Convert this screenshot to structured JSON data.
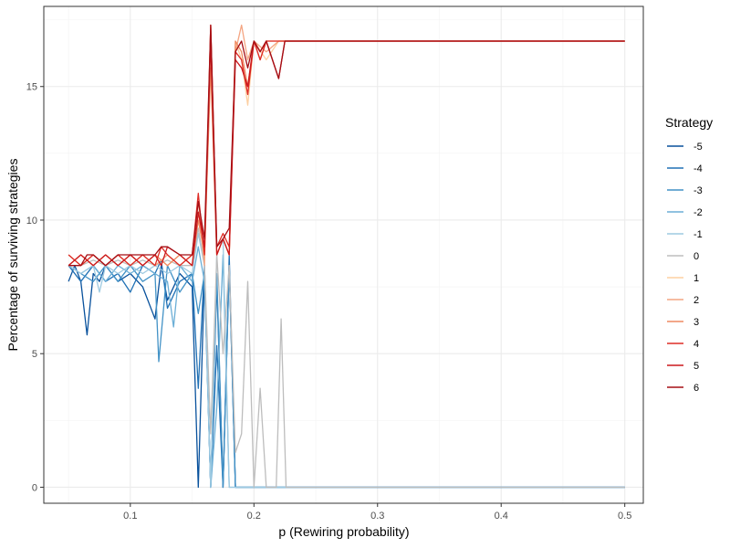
{
  "chart_data": {
    "type": "line",
    "title": "",
    "xlabel": "p (Rewiring probability)",
    "ylabel": "Percentage of surviving strategies",
    "xlim": [
      0.03,
      0.515
    ],
    "ylim": [
      -0.6,
      18.0
    ],
    "x_ticks": [
      0.1,
      0.2,
      0.3,
      0.4,
      0.5
    ],
    "x_tick_labels": [
      "0.1",
      "0.2",
      "0.3",
      "0.4",
      "0.5"
    ],
    "y_ticks": [
      0,
      5,
      10,
      15
    ],
    "y_tick_labels": [
      "0",
      "5",
      "10",
      "15"
    ],
    "grid": true,
    "legend": {
      "title": "Strategy",
      "position": "right"
    },
    "series": [
      {
        "name": "-5",
        "color": "#08519c",
        "points": [
          [
            0.05,
            7.7
          ],
          [
            0.055,
            8.3
          ],
          [
            0.06,
            7.7
          ],
          [
            0.065,
            5.7
          ],
          [
            0.07,
            8.0
          ],
          [
            0.075,
            7.7
          ],
          [
            0.08,
            8.3
          ],
          [
            0.09,
            7.7
          ],
          [
            0.1,
            8.0
          ],
          [
            0.11,
            7.5
          ],
          [
            0.12,
            6.3
          ],
          [
            0.125,
            8.3
          ],
          [
            0.13,
            7.0
          ],
          [
            0.14,
            8.0
          ],
          [
            0.15,
            7.5
          ],
          [
            0.155,
            0.0
          ],
          [
            0.16,
            8.0
          ],
          [
            0.165,
            0.0
          ],
          [
            0.17,
            7.7
          ],
          [
            0.175,
            0.0
          ],
          [
            0.18,
            8.3
          ],
          [
            0.185,
            0.0
          ],
          [
            0.5,
            0.0
          ]
        ]
      },
      {
        "name": "-4",
        "color": "#2171b5",
        "points": [
          [
            0.05,
            8.3
          ],
          [
            0.06,
            7.7
          ],
          [
            0.07,
            8.3
          ],
          [
            0.08,
            7.7
          ],
          [
            0.09,
            8.0
          ],
          [
            0.1,
            7.3
          ],
          [
            0.11,
            8.3
          ],
          [
            0.12,
            8.0
          ],
          [
            0.125,
            8.5
          ],
          [
            0.13,
            6.7
          ],
          [
            0.14,
            7.7
          ],
          [
            0.15,
            8.0
          ],
          [
            0.155,
            3.7
          ],
          [
            0.16,
            8.3
          ],
          [
            0.165,
            0.0
          ],
          [
            0.17,
            5.3
          ],
          [
            0.175,
            0.0
          ],
          [
            0.18,
            8.7
          ],
          [
            0.185,
            0.0
          ],
          [
            0.5,
            0.0
          ]
        ]
      },
      {
        "name": "-3",
        "color": "#4292c6",
        "points": [
          [
            0.05,
            8.3
          ],
          [
            0.06,
            8.0
          ],
          [
            0.07,
            7.7
          ],
          [
            0.08,
            8.3
          ],
          [
            0.09,
            7.7
          ],
          [
            0.1,
            8.3
          ],
          [
            0.11,
            7.7
          ],
          [
            0.12,
            8.0
          ],
          [
            0.123,
            4.7
          ],
          [
            0.13,
            8.3
          ],
          [
            0.14,
            7.3
          ],
          [
            0.15,
            8.0
          ],
          [
            0.155,
            6.5
          ],
          [
            0.16,
            8.0
          ],
          [
            0.165,
            0.0
          ],
          [
            0.17,
            8.0
          ],
          [
            0.175,
            0.0
          ],
          [
            0.18,
            8.3
          ],
          [
            0.185,
            0.0
          ],
          [
            0.5,
            0.0
          ]
        ]
      },
      {
        "name": "-2",
        "color": "#6baed6",
        "points": [
          [
            0.05,
            8.3
          ],
          [
            0.06,
            8.0
          ],
          [
            0.07,
            8.3
          ],
          [
            0.08,
            7.7
          ],
          [
            0.09,
            8.3
          ],
          [
            0.1,
            8.0
          ],
          [
            0.11,
            8.3
          ],
          [
            0.12,
            8.0
          ],
          [
            0.13,
            7.7
          ],
          [
            0.135,
            6.0
          ],
          [
            0.14,
            8.3
          ],
          [
            0.15,
            7.7
          ],
          [
            0.155,
            9.0
          ],
          [
            0.16,
            7.7
          ],
          [
            0.165,
            0.0
          ],
          [
            0.17,
            3.0
          ],
          [
            0.175,
            8.7
          ],
          [
            0.18,
            0.0
          ],
          [
            0.185,
            0.0
          ],
          [
            0.5,
            0.0
          ]
        ]
      },
      {
        "name": "-1",
        "color": "#9ecae1",
        "points": [
          [
            0.05,
            8.3
          ],
          [
            0.06,
            8.0
          ],
          [
            0.07,
            8.3
          ],
          [
            0.075,
            7.3
          ],
          [
            0.08,
            8.3
          ],
          [
            0.09,
            8.0
          ],
          [
            0.1,
            8.3
          ],
          [
            0.11,
            8.0
          ],
          [
            0.12,
            8.3
          ],
          [
            0.13,
            8.0
          ],
          [
            0.14,
            8.3
          ],
          [
            0.15,
            8.0
          ],
          [
            0.155,
            9.5
          ],
          [
            0.16,
            8.3
          ],
          [
            0.165,
            0.0
          ],
          [
            0.17,
            8.7
          ],
          [
            0.175,
            9.3
          ],
          [
            0.18,
            0.0
          ],
          [
            0.185,
            0.0
          ],
          [
            0.5,
            0.0
          ]
        ]
      },
      {
        "name": "0",
        "color": "#bdbdbd",
        "points": [
          [
            0.05,
            8.3
          ],
          [
            0.06,
            8.3
          ],
          [
            0.07,
            8.5
          ],
          [
            0.08,
            8.3
          ],
          [
            0.09,
            8.5
          ],
          [
            0.1,
            8.3
          ],
          [
            0.11,
            8.5
          ],
          [
            0.12,
            8.3
          ],
          [
            0.13,
            8.5
          ],
          [
            0.14,
            8.3
          ],
          [
            0.15,
            8.3
          ],
          [
            0.155,
            9.7
          ],
          [
            0.16,
            8.3
          ],
          [
            0.165,
            2.0
          ],
          [
            0.17,
            8.7
          ],
          [
            0.175,
            5.0
          ],
          [
            0.18,
            8.3
          ],
          [
            0.185,
            1.3
          ],
          [
            0.19,
            2.0
          ],
          [
            0.195,
            7.7
          ],
          [
            0.2,
            0.0
          ],
          [
            0.205,
            3.7
          ],
          [
            0.21,
            0.0
          ],
          [
            0.218,
            0.0
          ],
          [
            0.222,
            6.3
          ],
          [
            0.226,
            0.0
          ],
          [
            0.5,
            0.0
          ]
        ]
      },
      {
        "name": "1",
        "color": "#fdd0a2",
        "points": [
          [
            0.05,
            8.3
          ],
          [
            0.06,
            8.7
          ],
          [
            0.07,
            8.3
          ],
          [
            0.08,
            8.7
          ],
          [
            0.09,
            8.3
          ],
          [
            0.1,
            8.7
          ],
          [
            0.11,
            8.3
          ],
          [
            0.12,
            8.7
          ],
          [
            0.13,
            8.3
          ],
          [
            0.14,
            8.7
          ],
          [
            0.15,
            8.3
          ],
          [
            0.155,
            10.3
          ],
          [
            0.16,
            8.7
          ],
          [
            0.165,
            16.0
          ],
          [
            0.17,
            8.7
          ],
          [
            0.175,
            9.3
          ],
          [
            0.18,
            8.7
          ],
          [
            0.185,
            16.7
          ],
          [
            0.19,
            16.0
          ],
          [
            0.195,
            14.3
          ],
          [
            0.2,
            16.7
          ],
          [
            0.21,
            16.0
          ],
          [
            0.22,
            16.7
          ],
          [
            0.5,
            16.7
          ]
        ]
      },
      {
        "name": "2",
        "color": "#f4a582",
        "points": [
          [
            0.05,
            8.7
          ],
          [
            0.06,
            8.3
          ],
          [
            0.07,
            8.7
          ],
          [
            0.08,
            8.3
          ],
          [
            0.09,
            8.7
          ],
          [
            0.1,
            8.3
          ],
          [
            0.11,
            8.7
          ],
          [
            0.12,
            8.3
          ],
          [
            0.13,
            8.7
          ],
          [
            0.14,
            8.3
          ],
          [
            0.15,
            8.7
          ],
          [
            0.155,
            10.7
          ],
          [
            0.16,
            8.3
          ],
          [
            0.165,
            17.3
          ],
          [
            0.17,
            8.7
          ],
          [
            0.175,
            9.3
          ],
          [
            0.18,
            8.7
          ],
          [
            0.185,
            16.3
          ],
          [
            0.19,
            17.3
          ],
          [
            0.195,
            16.0
          ],
          [
            0.2,
            16.7
          ],
          [
            0.21,
            16.3
          ],
          [
            0.22,
            16.7
          ],
          [
            0.5,
            16.7
          ]
        ]
      },
      {
        "name": "3",
        "color": "#ef8a62",
        "points": [
          [
            0.05,
            8.3
          ],
          [
            0.06,
            8.7
          ],
          [
            0.07,
            8.3
          ],
          [
            0.08,
            8.7
          ],
          [
            0.09,
            8.3
          ],
          [
            0.1,
            8.7
          ],
          [
            0.11,
            8.3
          ],
          [
            0.12,
            8.7
          ],
          [
            0.13,
            8.3
          ],
          [
            0.14,
            8.7
          ],
          [
            0.15,
            8.3
          ],
          [
            0.155,
            10.0
          ],
          [
            0.16,
            8.7
          ],
          [
            0.165,
            15.7
          ],
          [
            0.17,
            8.7
          ],
          [
            0.175,
            9.3
          ],
          [
            0.18,
            8.7
          ],
          [
            0.185,
            16.7
          ],
          [
            0.19,
            16.3
          ],
          [
            0.195,
            15.0
          ],
          [
            0.2,
            16.7
          ],
          [
            0.205,
            16.0
          ],
          [
            0.21,
            16.7
          ],
          [
            0.5,
            16.7
          ]
        ]
      },
      {
        "name": "4",
        "color": "#de2d26",
        "points": [
          [
            0.05,
            8.7
          ],
          [
            0.06,
            8.3
          ],
          [
            0.07,
            8.7
          ],
          [
            0.08,
            8.3
          ],
          [
            0.09,
            8.7
          ],
          [
            0.1,
            8.3
          ],
          [
            0.11,
            8.7
          ],
          [
            0.12,
            8.3
          ],
          [
            0.125,
            9.0
          ],
          [
            0.13,
            8.7
          ],
          [
            0.14,
            8.3
          ],
          [
            0.15,
            8.7
          ],
          [
            0.155,
            11.0
          ],
          [
            0.16,
            8.7
          ],
          [
            0.165,
            17.3
          ],
          [
            0.17,
            9.0
          ],
          [
            0.175,
            9.5
          ],
          [
            0.18,
            9.0
          ],
          [
            0.185,
            16.3
          ],
          [
            0.19,
            16.0
          ],
          [
            0.195,
            14.7
          ],
          [
            0.2,
            16.7
          ],
          [
            0.205,
            16.0
          ],
          [
            0.21,
            16.7
          ],
          [
            0.5,
            16.7
          ]
        ]
      },
      {
        "name": "5",
        "color": "#cb181d",
        "points": [
          [
            0.05,
            8.3
          ],
          [
            0.06,
            8.7
          ],
          [
            0.07,
            8.3
          ],
          [
            0.08,
            8.7
          ],
          [
            0.09,
            8.3
          ],
          [
            0.1,
            8.7
          ],
          [
            0.11,
            8.3
          ],
          [
            0.12,
            8.7
          ],
          [
            0.125,
            8.3
          ],
          [
            0.13,
            9.0
          ],
          [
            0.14,
            8.7
          ],
          [
            0.15,
            8.3
          ],
          [
            0.155,
            10.3
          ],
          [
            0.16,
            9.0
          ],
          [
            0.165,
            16.7
          ],
          [
            0.17,
            8.7
          ],
          [
            0.175,
            9.3
          ],
          [
            0.18,
            8.7
          ],
          [
            0.185,
            16.0
          ],
          [
            0.19,
            15.7
          ],
          [
            0.195,
            15.0
          ],
          [
            0.2,
            16.7
          ],
          [
            0.205,
            16.3
          ],
          [
            0.21,
            16.7
          ],
          [
            0.22,
            15.3
          ],
          [
            0.225,
            16.7
          ],
          [
            0.5,
            16.7
          ]
        ]
      },
      {
        "name": "6",
        "color": "#a50f15",
        "points": [
          [
            0.05,
            8.3
          ],
          [
            0.06,
            8.3
          ],
          [
            0.065,
            8.7
          ],
          [
            0.07,
            8.7
          ],
          [
            0.08,
            8.3
          ],
          [
            0.09,
            8.7
          ],
          [
            0.1,
            8.7
          ],
          [
            0.11,
            8.7
          ],
          [
            0.12,
            8.7
          ],
          [
            0.125,
            9.0
          ],
          [
            0.13,
            9.0
          ],
          [
            0.14,
            8.7
          ],
          [
            0.15,
            8.7
          ],
          [
            0.155,
            10.7
          ],
          [
            0.16,
            9.3
          ],
          [
            0.165,
            17.3
          ],
          [
            0.17,
            9.0
          ],
          [
            0.175,
            9.3
          ],
          [
            0.18,
            9.7
          ],
          [
            0.185,
            16.3
          ],
          [
            0.19,
            16.7
          ],
          [
            0.195,
            15.7
          ],
          [
            0.2,
            16.7
          ],
          [
            0.205,
            16.3
          ],
          [
            0.21,
            16.7
          ],
          [
            0.22,
            15.3
          ],
          [
            0.225,
            16.7
          ],
          [
            0.5,
            16.7
          ]
        ]
      }
    ]
  }
}
